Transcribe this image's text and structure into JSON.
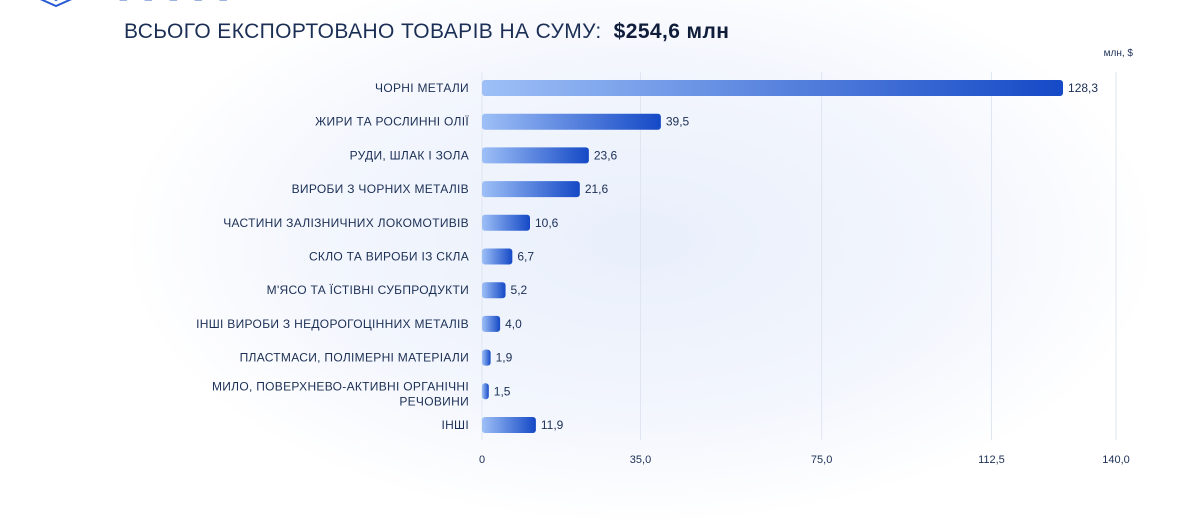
{
  "header": {
    "title": "ВСЬОГО ЕКСПОРТОВАНО ТОВАРІВ НА СУМУ:",
    "total": "$254,6 млн"
  },
  "colors": {
    "bar_start": "#9ec0f7",
    "bar_end": "#1549c6",
    "text": "#1b2f55",
    "grid": "#dfe6f2"
  },
  "chart_data": {
    "type": "bar",
    "orientation": "horizontal",
    "unit": "млн, $",
    "categories": [
      "ЧОРНІ МЕТАЛИ",
      "ЖИРИ ТА РОСЛИННІ ОЛІЇ",
      "РУДИ, ШЛАК І ЗОЛА",
      "ВИРОБИ З ЧОРНИХ МЕТАЛІВ",
      "ЧАСТИНИ ЗАЛІЗНИЧНИХ ЛОКОМОТИВІВ",
      "СКЛО ТА ВИРОБИ ІЗ СКЛА",
      "М'ЯСО ТА ЇСТІВНІ СУБПРОДУКТИ",
      "ІНШІ ВИРОБИ З НЕДОРОГОЦІННИХ МЕТАЛІВ",
      "ПЛАСТМАСИ, ПОЛІМЕРНІ МАТЕРІАЛИ",
      "МИЛО, ПОВЕРХНЕВО-АКТИВНІ ОРГАНІЧНІ РЕЧОВИНИ",
      "ІНШІ"
    ],
    "values": [
      128.3,
      39.5,
      23.6,
      21.6,
      10.6,
      6.7,
      5.2,
      4.0,
      1.9,
      1.5,
      11.9
    ],
    "value_labels": [
      "128,3",
      "39,5",
      "23,6",
      "21,6",
      "10,6",
      "6,7",
      "5,2",
      "4,0",
      "1,9",
      "1,5",
      "11,9"
    ],
    "x_ticks": [
      0,
      35,
      75,
      112.5,
      140
    ],
    "x_tick_labels": [
      "0",
      "35,0",
      "75,0",
      "112,5",
      "140,0"
    ],
    "xlim": [
      0,
      140
    ],
    "grid": true,
    "legend": false
  }
}
